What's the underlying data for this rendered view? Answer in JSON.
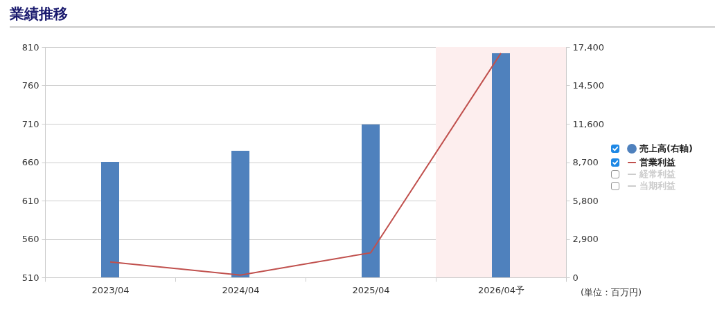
{
  "chart_data": {
    "type": "bar",
    "title": "業績推移",
    "categories": [
      "2023/04",
      "2024/04",
      "2025/04",
      "2026/04予"
    ],
    "series": [
      {
        "name": "売上高(右軸)",
        "axis": "y2",
        "color": "#4f81bd",
        "values": [
          8730,
          9560,
          11550,
          16930
        ]
      },
      {
        "name": "営業利益",
        "type": "line",
        "color": "#c0504d",
        "values": [
          530,
          513,
          542,
          802
        ]
      },
      {
        "name": "経常利益",
        "type": "line",
        "color": "#cccccc",
        "values": [
          null,
          null,
          null,
          null
        ]
      },
      {
        "name": "当期利益",
        "type": "line",
        "color": "#cccccc",
        "values": [
          null,
          null,
          null,
          null
        ]
      }
    ],
    "ylim": [
      510,
      810
    ],
    "yticks": [
      510,
      560,
      610,
      660,
      710,
      760,
      810
    ],
    "y2lim": [
      0,
      17400
    ],
    "y2ticks": [
      0,
      {
        "value": 2900,
        "label": "2,900"
      },
      {
        "value": 5800,
        "label": "5,800"
      },
      {
        "value": 8700,
        "label": "8,700"
      },
      {
        "value": 11600,
        "label": "11,600"
      },
      {
        "value": 14500,
        "label": "14,500"
      },
      {
        "value": 17400,
        "label": "17,400"
      }
    ],
    "bands": [
      {
        "axis": "x",
        "from": "2026/04予",
        "to": "2026/04予",
        "color": "#fdeeee"
      }
    ],
    "grid": "y",
    "legend": "right",
    "line_style": "solid",
    "annotations": [
      "(単位：百万円)"
    ]
  }
}
